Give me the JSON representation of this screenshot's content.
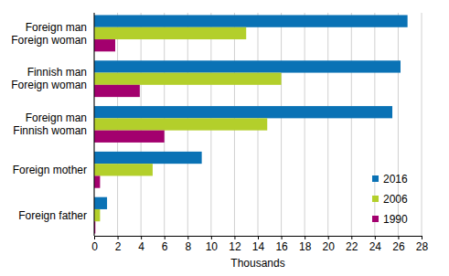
{
  "chart_data": {
    "type": "bar",
    "orientation": "horizontal",
    "categories": [
      "Foreign man\nForeign woman",
      "Finnish man\nForeign woman",
      "Foreign man\nFinnish woman",
      "Foreign mother",
      "Foreign father"
    ],
    "series": [
      {
        "name": "2016",
        "color": "#0a72b5",
        "values": [
          26.8,
          26.2,
          25.5,
          9.2,
          1.1
        ]
      },
      {
        "name": "2006",
        "color": "#b3cf2b",
        "values": [
          13.0,
          16.0,
          14.8,
          5.0,
          0.5
        ]
      },
      {
        "name": "1990",
        "color": "#a3006e",
        "values": [
          1.8,
          3.9,
          6.0,
          0.5,
          0.1
        ]
      }
    ],
    "x_label": "Thousands",
    "xlim": [
      0,
      28
    ],
    "xticks": [
      0,
      2,
      4,
      6,
      8,
      10,
      12,
      14,
      16,
      18,
      20,
      22,
      24,
      26,
      28
    ],
    "grid": true,
    "legend": "lower right"
  }
}
